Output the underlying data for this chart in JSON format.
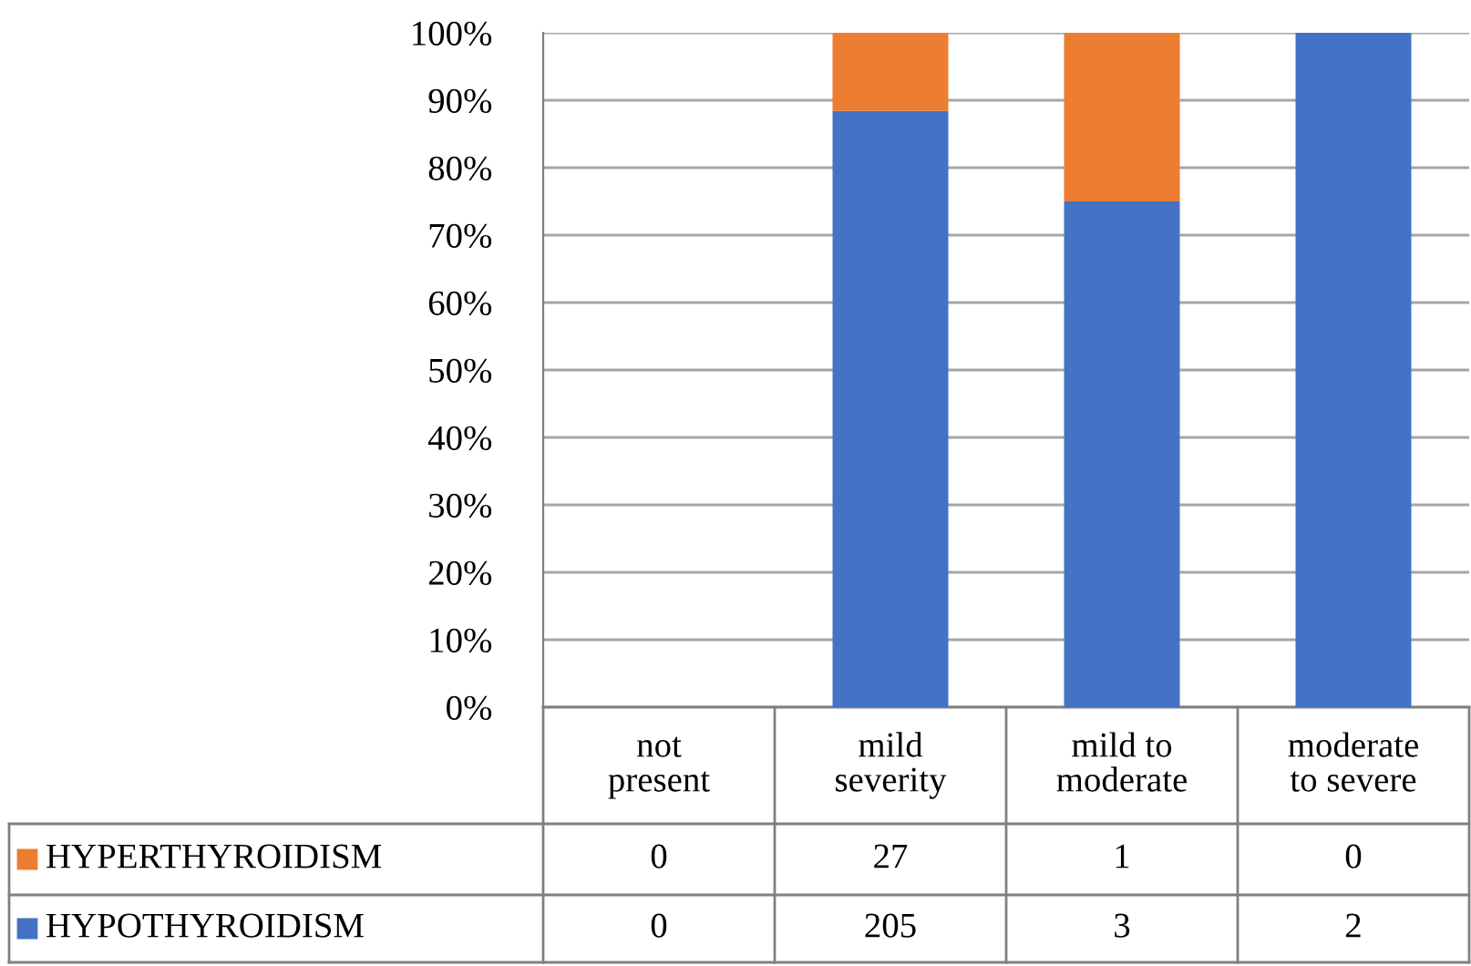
{
  "chart_data": {
    "type": "bar",
    "stacked": true,
    "categories": [
      "not present",
      "mild severity",
      "mild to moderate",
      "moderate to severe"
    ],
    "series": [
      {
        "name": "HYPOTHYROIDISM",
        "color": "#4472c4",
        "values": [
          0,
          88.4,
          75,
          100
        ]
      },
      {
        "name": "HYPERTHYROIDISM",
        "color": "#ed7d31",
        "values": [
          0,
          11.6,
          25,
          0
        ]
      }
    ],
    "annotations": [
      "0",
      "27",
      "1",
      "0",
      "0",
      "205",
      "3",
      "2"
    ],
    "ylim": [
      0,
      100
    ],
    "yticks": [
      {
        "value": 0,
        "label": "0%"
      },
      {
        "value": 10,
        "label": "10%"
      },
      {
        "value": 20,
        "label": "20%"
      },
      {
        "value": 30,
        "label": "30%"
      },
      {
        "value": 40,
        "label": "40%"
      },
      {
        "value": 50,
        "label": "50%"
      },
      {
        "value": 60,
        "label": "60%"
      },
      {
        "value": 70,
        "label": "70%"
      },
      {
        "value": 80,
        "label": "80%"
      },
      {
        "value": 90,
        "label": "90%"
      },
      {
        "value": 100,
        "label": "100%"
      }
    ],
    "grid": "y",
    "legend": "bottom"
  }
}
